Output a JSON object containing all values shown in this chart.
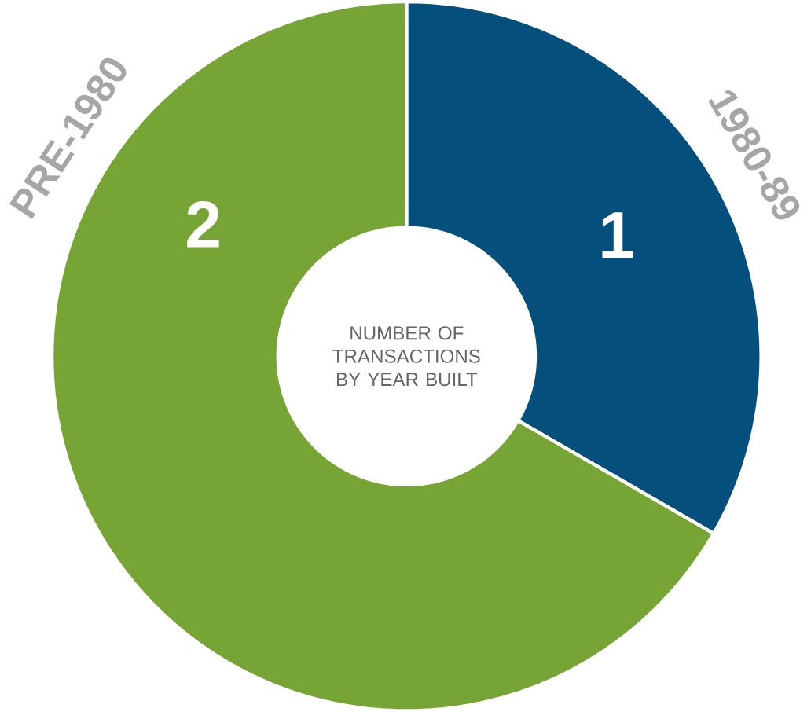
{
  "chart_data": {
    "type": "donut",
    "title": "NUMBER OF TRANSACTIONS BY YEAR BUILT",
    "categories": [
      "1980-89",
      "PRE-1980"
    ],
    "values": [
      1,
      2
    ],
    "colors": [
      "#054f7d",
      "#76a536"
    ],
    "data_labels": true
  }
}
